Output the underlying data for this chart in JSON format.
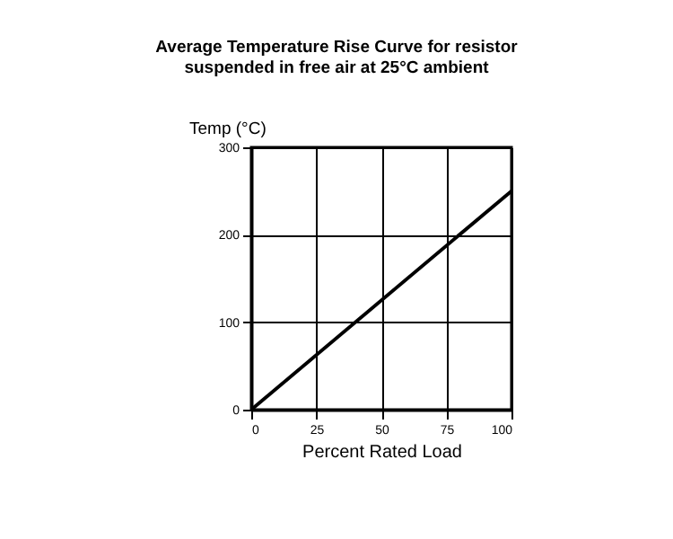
{
  "chart_data": {
    "type": "line",
    "title": "Average Temperature Rise Curve for resistor\nsuspended in free air at 25°C ambient",
    "xlabel": "Percent Rated Load",
    "ylabel": "Temp (°C)",
    "x": [
      0,
      100
    ],
    "series": [
      {
        "color": "#000000",
        "values": [
          0,
          250
        ]
      }
    ],
    "xlim": [
      0,
      100
    ],
    "xticks": [
      0,
      25,
      50,
      75,
      100
    ],
    "ylim": [
      0,
      300
    ],
    "yticks": [
      0,
      100,
      200,
      300
    ],
    "grid": true,
    "marker": "none",
    "line_style": "solid",
    "legend": false
  }
}
